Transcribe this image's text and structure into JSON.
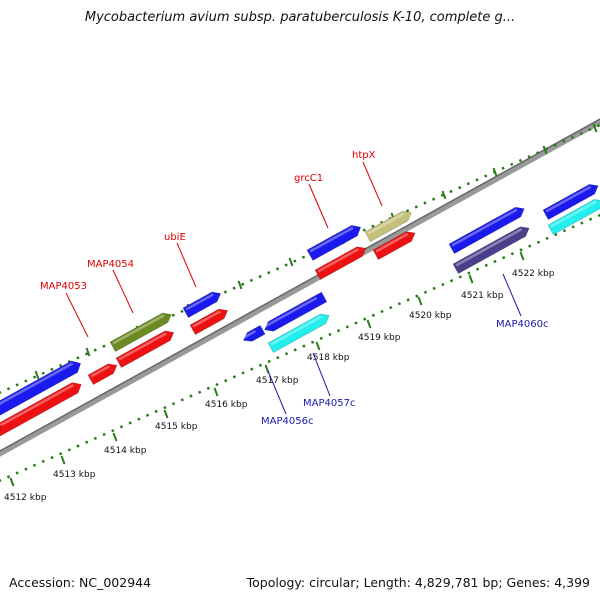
{
  "title": "Mycobacterium avium subsp. paratuberculosis K-10, complete g...",
  "footer": {
    "accession": "Accession: NC_002944",
    "summary": "Topology: circular; Length: 4,829,781 bp; Genes: 4,399"
  },
  "colors": {
    "plus_strand": "#1a1aee",
    "minus_strand": "#ee1111",
    "cyan": "#22eeee",
    "olive": "#6b8a22",
    "khaki": "#c4c07a",
    "slate": "#4a3f8a",
    "tick": "#2a7a1a",
    "backbone": "#888888",
    "label_red": "#dd0000",
    "label_blue": "#1a1aaa"
  },
  "kbp_ticks": [
    {
      "label": "4512 kbp"
    },
    {
      "label": "4513 kbp"
    },
    {
      "label": "4514 kbp"
    },
    {
      "label": "4515 kbp"
    },
    {
      "label": "4516 kbp"
    },
    {
      "label": "4517 kbp"
    },
    {
      "label": "4518 kbp"
    },
    {
      "label": "4519 kbp"
    },
    {
      "label": "4520 kbp"
    },
    {
      "label": "4521 kbp"
    },
    {
      "label": "4522 kbp"
    }
  ],
  "gene_labels_top": [
    {
      "text": "MAP4053"
    },
    {
      "text": "MAP4054"
    },
    {
      "text": "ubiE"
    },
    {
      "text": "grcC1"
    },
    {
      "text": "htpX"
    }
  ],
  "gene_labels_bottom": [
    {
      "text": "MAP4056c"
    },
    {
      "text": "MAP4057c"
    },
    {
      "text": "MAP4060c"
    }
  ]
}
